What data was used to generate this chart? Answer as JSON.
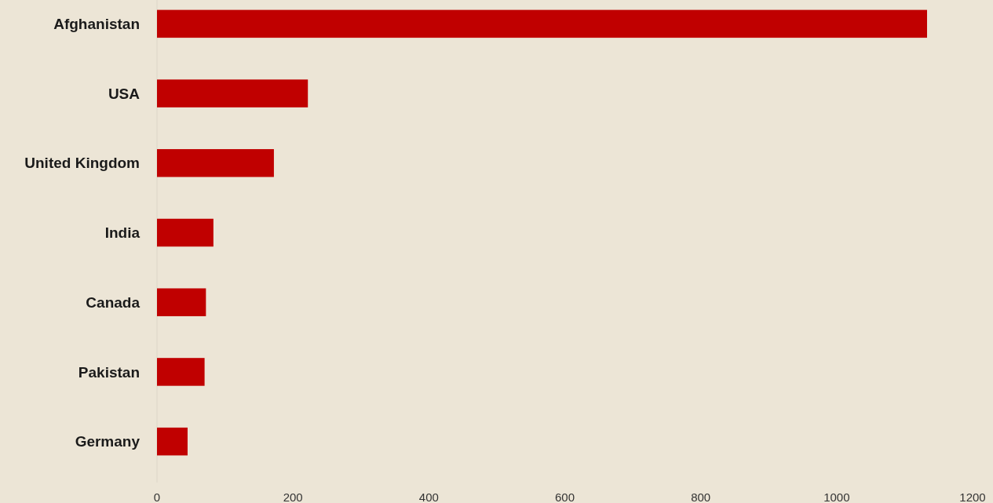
{
  "chart_data": {
    "type": "bar",
    "orientation": "horizontal",
    "categories": [
      "Afghanistan",
      "USA",
      "United Kingdom",
      "India",
      "Canada",
      "Pakistan",
      "Germany"
    ],
    "values": [
      1133,
      222,
      172,
      83,
      72,
      70,
      45
    ],
    "color": "#c00000",
    "xlim": [
      0,
      1200
    ],
    "xticks": [
      0,
      200,
      400,
      600,
      800,
      1000,
      1200
    ]
  }
}
